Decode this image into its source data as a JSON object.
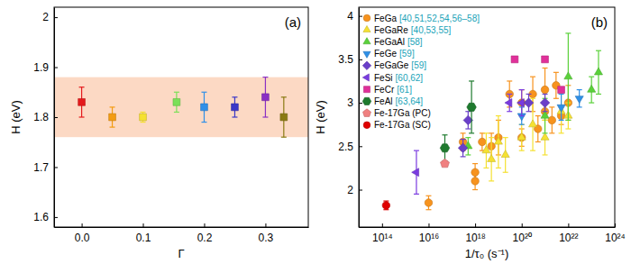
{
  "chart_data": [
    {
      "type": "scatter",
      "annotations": [
        "(a)"
      ],
      "x_label": "Γ",
      "y_label": "H (eV)",
      "marker": "square",
      "x": [
        0,
        0.05,
        0.1,
        0.155,
        0.2,
        0.25,
        0.3,
        0.33
      ],
      "values": [
        1.83,
        1.8,
        1.8,
        1.83,
        1.82,
        1.82,
        1.84,
        1.8
      ],
      "errors": [
        0.03,
        0.02,
        0.01,
        0.02,
        0.03,
        0.02,
        0.04,
        0.04
      ],
      "colors": [
        "#e41a1c",
        "#f39c12",
        "#f5e132",
        "#7be058",
        "#2f8fe8",
        "#3a37c8",
        "#8a30c4",
        "#8a7a12"
      ],
      "shaded_range": [
        1.76,
        1.88
      ],
      "xlim": [
        -0.045,
        0.37
      ],
      "ylim": [
        1.58,
        2.02
      ],
      "xticks": [
        {
          "value": 0,
          "label": "0.0"
        },
        0.1,
        0.2,
        0.3
      ],
      "yticks": [
        1.6,
        1.7,
        1.8,
        1.9,
        2
      ]
    },
    {
      "type": "scatter",
      "annotations": [
        "(b)"
      ],
      "x_label": "1/τ₀ (s⁻¹)",
      "y_label": "H (eV)",
      "log": "x",
      "legend": "top-left",
      "xlim": [
        10000000000000.0,
        1e+24
      ],
      "ylim": [
        1.57,
        4.1
      ],
      "xticks": [
        {
          "value": 100000000000000.0,
          "label": "10¹⁴"
        },
        {
          "value": 1e+16,
          "label": "10¹⁶"
        },
        {
          "value": 1e+18,
          "label": "10¹⁸"
        },
        {
          "value": 1e+20,
          "label": "10²⁰"
        },
        {
          "value": 1e+22,
          "label": "10²²"
        },
        {
          "value": 1e+24,
          "label": "10²⁴"
        }
      ],
      "yticks": [
        2,
        2.5,
        3,
        3.5,
        4
      ],
      "series": [
        {
          "name": "FeGa",
          "refs": "[40,51,52,54,56–58]",
          "color": "#f7931e",
          "marker": "circle",
          "x": [
            1e+16,
            3e+17,
            1e+18,
            1e+18,
            2e+18,
            5e+18,
            1e+19,
            3e+19,
            1e+20,
            1e+20,
            3e+20,
            5e+20,
            1e+21,
            1e+21,
            2e+21,
            5e+21,
            1e+22,
            3e+21
          ],
          "values": [
            1.85,
            2.55,
            2.2,
            2.1,
            2.55,
            2.5,
            2.6,
            3.1,
            2.6,
            3.0,
            3.1,
            2.7,
            2.9,
            3.15,
            2.8,
            2.85,
            3.0,
            3.2
          ],
          "errors": [
            0.08,
            0.1,
            0.1,
            0.1,
            0.1,
            0.15,
            0.2,
            0.15,
            0.1,
            0.15,
            0.2,
            0.15,
            0.1,
            0.25,
            0.15,
            0.1,
            0.2,
            0.15
          ]
        },
        {
          "name": "FeGaRe",
          "refs": "[40,53,55]",
          "color": "#f5e132",
          "marker": "triangle-up",
          "x": [
            3e+18,
            5e+18,
            1e+19,
            2e+19,
            1e+20,
            3e+20,
            1e+21,
            5e+21,
            1e+22
          ],
          "values": [
            2.45,
            2.35,
            2.55,
            2.4,
            2.6,
            2.75,
            2.6,
            2.9,
            2.85
          ],
          "errors": [
            0.2,
            0.25,
            0.3,
            0.2,
            0.15,
            0.3,
            0.2,
            0.25,
            0.15
          ]
        },
        {
          "name": "FeGaAl",
          "refs": "[58]",
          "color": "#5ad13a",
          "marker": "triangle-up",
          "x": [
            5e+17,
            1e+21,
            1e+22,
            1e+23,
            2e+23
          ],
          "values": [
            2.5,
            2.85,
            3.3,
            3.15,
            3.35
          ],
          "errors": [
            0.1,
            0.2,
            0.5,
            0.15,
            0.25
          ]
        },
        {
          "name": "FeGe",
          "refs": "[59]",
          "color": "#2e8fe6",
          "marker": "triangle-down",
          "x": [
            1e+20,
            5e+21,
            3e+22
          ],
          "values": [
            2.85,
            2.95,
            3.05
          ],
          "errors": [
            0.1,
            0.15,
            0.1
          ]
        },
        {
          "name": "FeGaGe",
          "refs": "[59]",
          "color": "#6a3fc9",
          "marker": "diamond",
          "x": [
            3e+17,
            5e+17,
            2e+20,
            1e+21
          ],
          "values": [
            2.48,
            2.8,
            3.0,
            3.0
          ],
          "errors": [
            0.1,
            0.1,
            0.1,
            0.1
          ]
        },
        {
          "name": "FeSi",
          "refs": "[60,62]",
          "color": "#7a3be0",
          "marker": "triangle-left",
          "x": [
            3000000000000000.0,
            3e+19,
            1e+20
          ],
          "values": [
            2.2,
            3.0,
            3.0
          ],
          "errors": [
            0.25,
            0.1,
            0.15
          ]
        },
        {
          "name": "FeCr",
          "refs": "[61]",
          "color": "#e0309a",
          "marker": "square",
          "x": [
            5e+19,
            1e+21,
            5e+21
          ],
          "values": [
            3.5,
            3.5,
            3.15
          ]
        },
        {
          "name": "FeAl",
          "refs": "[63,64]",
          "color": "#1e7a2e",
          "marker": "hexagon",
          "x": [
            5e+16,
            7e+17
          ],
          "values": [
            2.48,
            2.95
          ],
          "errors": [
            0.15,
            0.3
          ]
        },
        {
          "name": "Fe-17Ga (PC)",
          "color": "#f08080",
          "marker": "pentagon",
          "x": [
            5e+16
          ],
          "values": [
            2.3
          ]
        },
        {
          "name": "Fe-17Ga (SC)",
          "color": "#e00000",
          "marker": "circle",
          "x": [
            150000000000000.0
          ],
          "values": [
            1.82
          ],
          "errors": [
            0.05
          ]
        }
      ]
    }
  ]
}
